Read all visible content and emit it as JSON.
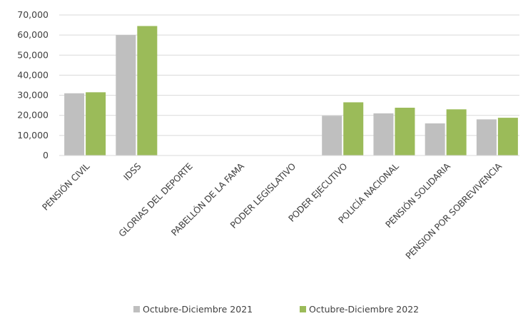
{
  "chart_data": {
    "type": "bar",
    "categories": [
      "PENSIÓN CIVIL",
      "IDSS",
      "GLORIAS DEL DEPORTE",
      "PABELLÓN DE LA FAMA",
      "PODER LEGISLATIVO",
      "PODER EJECUTIVO",
      "POLICÍA NACIONAL",
      "PENSIÓN SOLIDARIA",
      "PENSION POR SOBREVIVENCIA"
    ],
    "series": [
      {
        "name": "Octubre-Diciembre 2021",
        "color": "#bfbfbf",
        "values": [
          31000,
          60000,
          0,
          0,
          0,
          19800,
          21000,
          16000,
          18000
        ]
      },
      {
        "name": "Octubre-Diciembre 2022",
        "color": "#9bbb59",
        "values": [
          31500,
          64500,
          0,
          0,
          0,
          26500,
          23800,
          23000,
          18800
        ]
      }
    ],
    "yticks": [
      "0",
      "10,000",
      "20,000",
      "30,000",
      "40,000",
      "50,000",
      "60,000",
      "70,000"
    ],
    "ylim": [
      0,
      70000
    ],
    "grid": true,
    "legend_position": "bottom",
    "gridline_color": "#d9d9d9"
  }
}
